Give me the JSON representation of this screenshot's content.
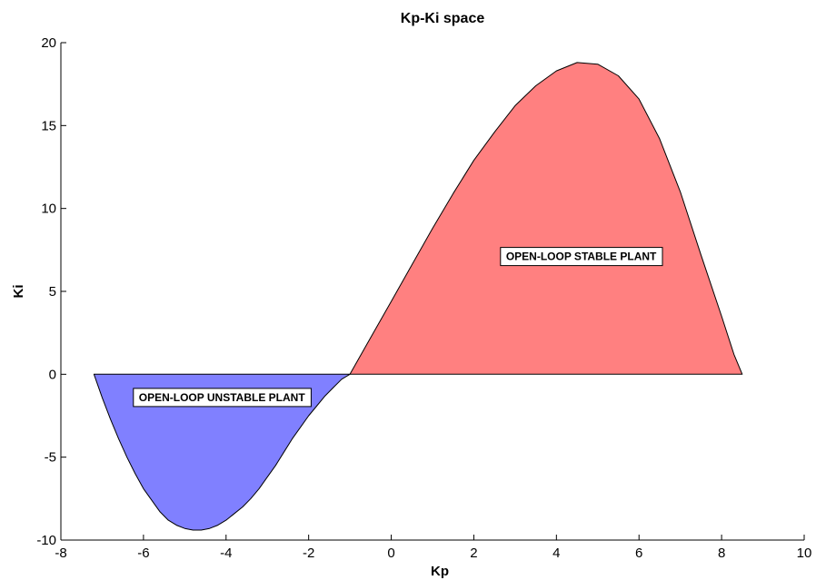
{
  "chart_data": {
    "type": "area",
    "title": "Kp-Ki space",
    "xlabel": "Kp",
    "ylabel": "Ki",
    "xlim": [
      -8,
      10
    ],
    "ylim": [
      -10,
      20
    ],
    "xticks": [
      -8,
      -6,
      -4,
      -2,
      0,
      2,
      4,
      6,
      8,
      10
    ],
    "yticks": [
      -10,
      -5,
      0,
      5,
      10,
      15,
      20
    ],
    "grid": false,
    "series": [
      {
        "region": "unstable",
        "color": "#8080ff",
        "x": [
          -7.2,
          -7.0,
          -6.8,
          -6.6,
          -6.4,
          -6.2,
          -6.0,
          -5.8,
          -5.6,
          -5.4,
          -5.2,
          -5.0,
          -4.8,
          -4.6,
          -4.4,
          -4.2,
          -4.0,
          -3.8,
          -3.6,
          -3.4,
          -3.2,
          -3.0,
          -2.8,
          -2.6,
          -2.4,
          -2.2,
          -2.0,
          -1.8,
          -1.6,
          -1.4,
          -1.2,
          -1.0
        ],
        "y": [
          0,
          -1.4,
          -2.7,
          -3.9,
          -5.0,
          -6.0,
          -6.9,
          -7.6,
          -8.3,
          -8.8,
          -9.1,
          -9.3,
          -9.4,
          -9.4,
          -9.3,
          -9.1,
          -8.8,
          -8.4,
          -8.0,
          -7.5,
          -6.9,
          -6.2,
          -5.5,
          -4.7,
          -3.9,
          -3.2,
          -2.5,
          -1.9,
          -1.3,
          -0.8,
          -0.3,
          0
        ]
      },
      {
        "region": "stable",
        "color": "#ff8080",
        "x": [
          -1.0,
          -0.5,
          0.0,
          0.5,
          1.0,
          1.5,
          2.0,
          2.5,
          3.0,
          3.5,
          4.0,
          4.5,
          5.0,
          5.5,
          6.0,
          6.5,
          7.0,
          7.5,
          8.0,
          8.3,
          8.5
        ],
        "y": [
          0,
          2.2,
          4.4,
          6.6,
          8.8,
          10.9,
          12.9,
          14.6,
          16.2,
          17.4,
          18.3,
          18.8,
          18.7,
          18.0,
          16.6,
          14.2,
          11.0,
          7.2,
          3.5,
          1.2,
          0
        ]
      }
    ],
    "annotations": [
      {
        "text": "OPEN-LOOP STABLE PLANT",
        "x": 4.6,
        "y": 7.1
      },
      {
        "text": "OPEN-LOOP UNSTABLE PLANT",
        "x": -4.1,
        "y": -1.4
      }
    ]
  }
}
